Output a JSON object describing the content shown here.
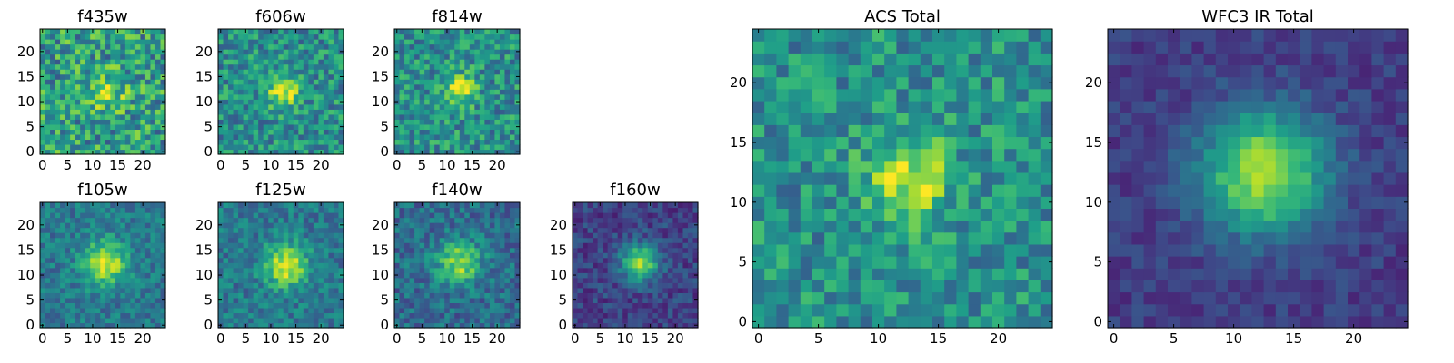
{
  "chart_data": [
    {
      "type": "heatmap",
      "title": "f435w",
      "xlim": [
        0,
        24
      ],
      "ylim": [
        0,
        24
      ],
      "xticks": [
        0,
        5,
        10,
        15,
        20
      ],
      "yticks": [
        0,
        5,
        10,
        15,
        20
      ],
      "center": [
        12.5,
        12
      ],
      "sigma": 2.6,
      "amplitude": 0.35,
      "noise": 0.28,
      "base": 0.55,
      "colormap": "viridis"
    },
    {
      "type": "heatmap",
      "title": "f606w",
      "xlim": [
        0,
        24
      ],
      "ylim": [
        0,
        24
      ],
      "xticks": [
        0,
        5,
        10,
        15,
        20
      ],
      "yticks": [
        0,
        5,
        10,
        15,
        20
      ],
      "center": [
        12.5,
        12
      ],
      "sigma": 2.2,
      "amplitude": 0.45,
      "noise": 0.22,
      "base": 0.5,
      "colormap": "viridis"
    },
    {
      "type": "heatmap",
      "title": "f814w",
      "xlim": [
        0,
        24
      ],
      "ylim": [
        0,
        24
      ],
      "xticks": [
        0,
        5,
        10,
        15,
        20
      ],
      "yticks": [
        0,
        5,
        10,
        15,
        20
      ],
      "center": [
        12.5,
        12.5
      ],
      "sigma": 2.2,
      "amplitude": 0.45,
      "noise": 0.22,
      "base": 0.5,
      "colormap": "viridis"
    },
    {
      "type": "heatmap",
      "title": "f105w",
      "xlim": [
        0,
        24
      ],
      "ylim": [
        0,
        24
      ],
      "xticks": [
        0,
        5,
        10,
        15,
        20
      ],
      "yticks": [
        0,
        5,
        10,
        15,
        20
      ],
      "center": [
        12.5,
        12.5
      ],
      "sigma": 3.0,
      "amplitude": 0.55,
      "noise": 0.14,
      "base": 0.4,
      "colormap": "viridis"
    },
    {
      "type": "heatmap",
      "title": "f125w",
      "xlim": [
        0,
        24
      ],
      "ylim": [
        0,
        24
      ],
      "xticks": [
        0,
        5,
        10,
        15,
        20
      ],
      "yticks": [
        0,
        5,
        10,
        15,
        20
      ],
      "center": [
        13,
        12
      ],
      "sigma": 3.0,
      "amplitude": 0.55,
      "noise": 0.15,
      "base": 0.4,
      "colormap": "viridis"
    },
    {
      "type": "heatmap",
      "title": "f140w",
      "xlim": [
        0,
        24
      ],
      "ylim": [
        0,
        24
      ],
      "xticks": [
        0,
        5,
        10,
        15,
        20
      ],
      "yticks": [
        0,
        5,
        10,
        15,
        20
      ],
      "center": [
        12.5,
        12.5
      ],
      "sigma": 3.0,
      "amplitude": 0.5,
      "noise": 0.16,
      "base": 0.35,
      "colormap": "viridis"
    },
    {
      "type": "heatmap",
      "title": "f160w",
      "xlim": [
        0,
        24
      ],
      "ylim": [
        0,
        24
      ],
      "xticks": [
        0,
        5,
        10,
        15,
        20
      ],
      "yticks": [
        0,
        5,
        10,
        15,
        20
      ],
      "center": [
        13,
        12.5
      ],
      "sigma": 2.6,
      "amplitude": 0.65,
      "noise": 0.12,
      "base": 0.2,
      "colormap": "viridis"
    },
    {
      "type": "heatmap",
      "title": "ACS Total",
      "xlim": [
        0,
        24
      ],
      "ylim": [
        0,
        24
      ],
      "xticks": [
        0,
        5,
        10,
        15,
        20
      ],
      "yticks": [
        0,
        5,
        10,
        15,
        20
      ],
      "center": [
        12.5,
        12
      ],
      "sigma": 2.4,
      "amplitude": 0.45,
      "noise": 0.2,
      "base": 0.5,
      "colormap": "viridis"
    },
    {
      "type": "heatmap",
      "title": "WFC3 IR Total",
      "xlim": [
        0,
        24
      ],
      "ylim": [
        0,
        24
      ],
      "xticks": [
        0,
        5,
        10,
        15,
        20
      ],
      "yticks": [
        0,
        5,
        10,
        15,
        20
      ],
      "center": [
        12.5,
        12.5
      ],
      "sigma": 3.6,
      "amplitude": 0.72,
      "noise": 0.08,
      "base": 0.18,
      "colormap": "viridis"
    }
  ]
}
